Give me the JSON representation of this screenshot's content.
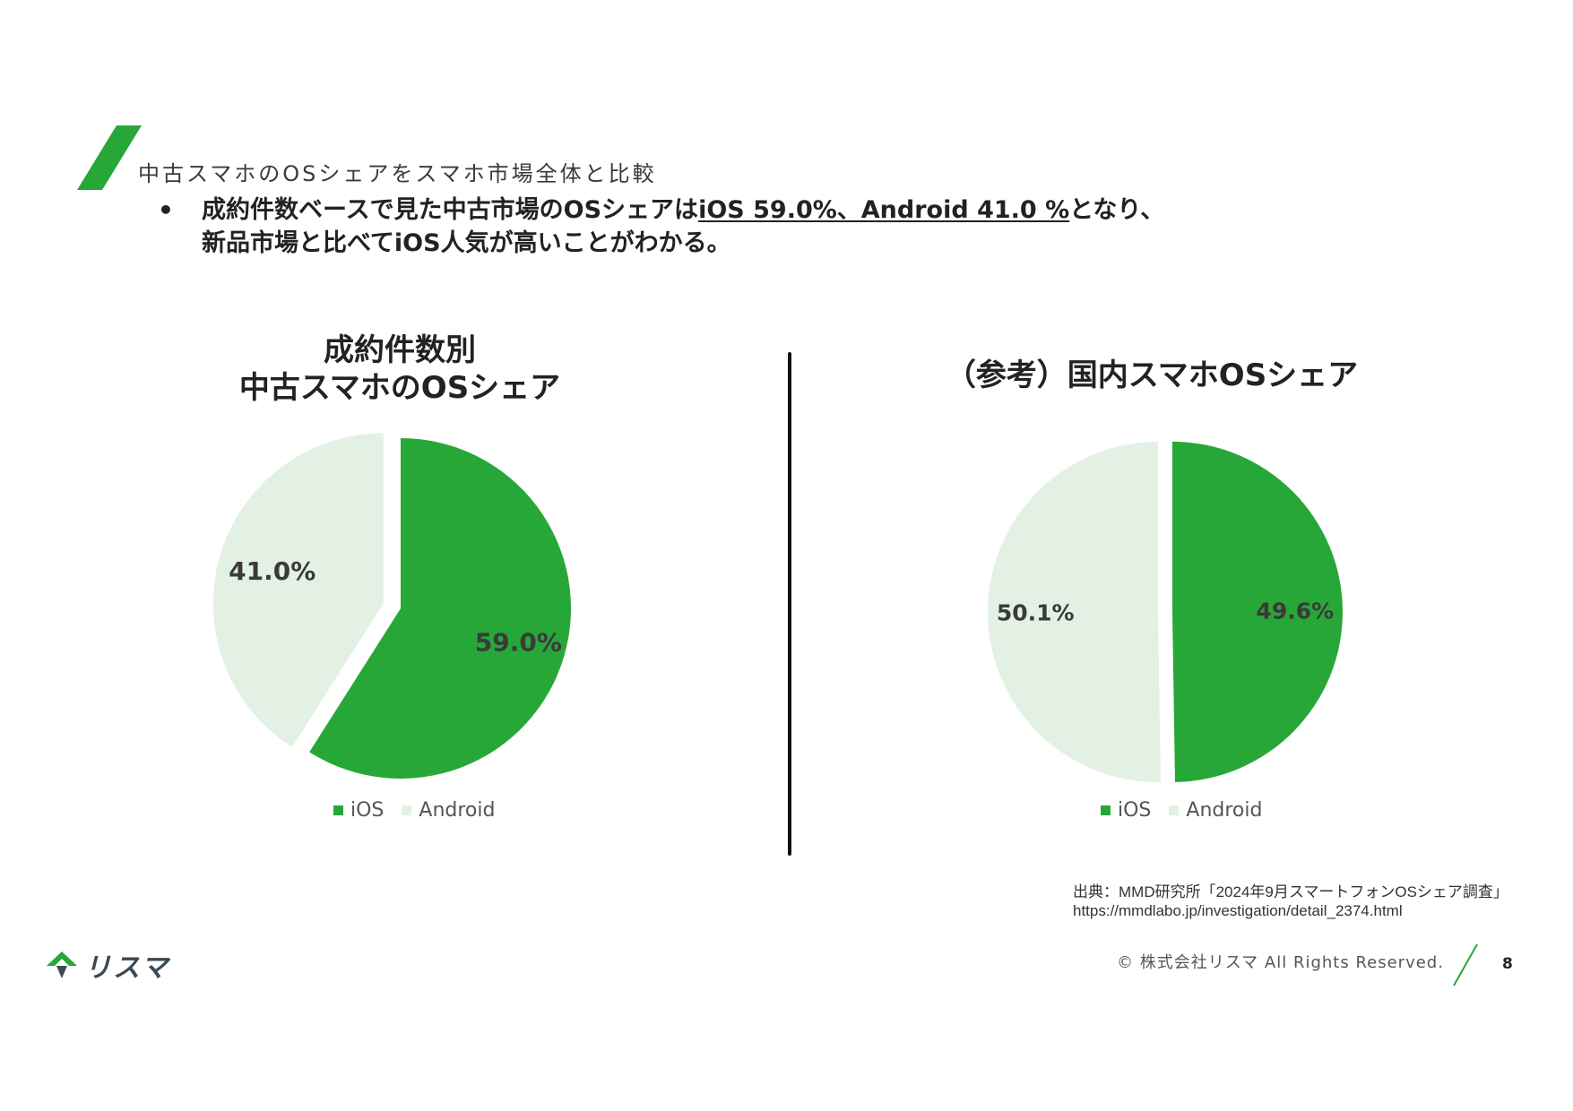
{
  "heading": "中古スマホのOSシェアをスマホ市場全体と比較",
  "bullet_symbol": "•",
  "summary": {
    "line1_before": "成約件数ベースで見た中古市場のOSシェアは",
    "line1_underlined": "iOS 59.0%、Android 41.0 %",
    "line1_after": "となり、",
    "line2": "新品市場と比べてiOS人気が高いことがわかる。"
  },
  "colors": {
    "ios": "#27a737",
    "android": "#e3f1e5",
    "label": "#3a3a3a",
    "accent": "#27a737"
  },
  "chart_data": [
    {
      "type": "pie",
      "title_line1": "成約件数別",
      "title_line2": "中古スマホのOSシェア",
      "series": [
        {
          "name": "iOS",
          "value": 59.0,
          "label": "59.0%"
        },
        {
          "name": "Android",
          "value": 41.0,
          "label": "41.0%"
        }
      ],
      "legend": [
        "iOS",
        "Android"
      ],
      "legend_position": "bottom",
      "exploded": true
    },
    {
      "type": "pie",
      "title": "（参考）国内スマホOSシェア",
      "series": [
        {
          "name": "iOS",
          "value": 49.6,
          "label": "49.6%"
        },
        {
          "name": "Android",
          "value": 50.1,
          "label": "50.1%"
        }
      ],
      "legend": [
        "iOS",
        "Android"
      ],
      "legend_position": "bottom",
      "exploded": true
    }
  ],
  "source": {
    "line1": "出典：MMD研究所「2024年9月スマートフォンOSシェア調査」",
    "line2": "https://mmdlabo.jp/investigation/detail_2374.html"
  },
  "footer": {
    "logo_text": "リスマ",
    "copyright": "© 株式会社リスマ All Rights Reserved.",
    "page_number": "8"
  }
}
